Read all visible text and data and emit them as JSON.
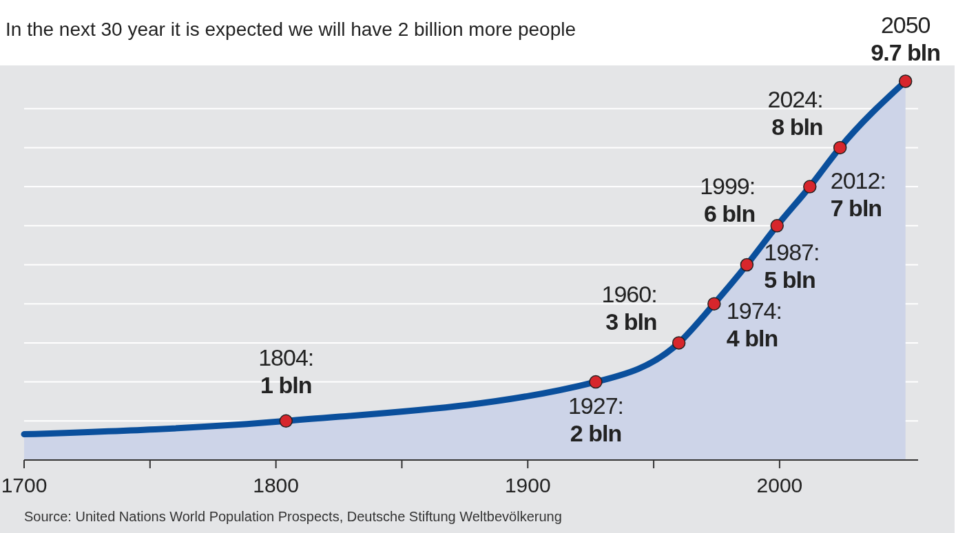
{
  "chart_data": {
    "type": "area",
    "title": "In the next 30 year it is expected we will have 2 billion more people",
    "xlim": [
      1700,
      2055
    ],
    "xticks": [
      1700,
      {
        "value": 1750,
        "label": null
      },
      1800,
      {
        "value": 1850,
        "label": null
      },
      1900,
      {
        "value": 1950,
        "label": null
      },
      2000
    ],
    "yticks": [
      {
        "value": 1,
        "label": null
      },
      {
        "value": 2,
        "label": null
      },
      {
        "value": 3,
        "label": null
      },
      {
        "value": 4,
        "label": null
      },
      {
        "value": 5,
        "label": null
      },
      {
        "value": 6,
        "label": null
      },
      {
        "value": 7,
        "label": null
      },
      {
        "value": 8,
        "label": null
      },
      {
        "value": 9,
        "label": null
      }
    ],
    "tick_labels": "x",
    "grid": "y",
    "marker": "circle",
    "series": [
      {
        "color": "#0a4f9c",
        "x": [
          1700,
          1804,
          1927,
          1960,
          1974,
          1987,
          1999,
          2012,
          2024,
          2050
        ],
        "values": [
          0.66,
          1,
          2,
          3,
          4,
          5,
          6,
          7,
          8,
          9.7
        ],
        "value_labels": [
          null,
          "1 bln",
          "2 bln",
          "3 bln",
          "4 bln",
          "5 bln",
          "6 bln",
          "7 bln",
          "8 bln",
          "9.7 bln"
        ]
      }
    ],
    "annotations": [
      {
        "text": "1804:",
        "x": 1804,
        "y": 1
      },
      {
        "text": "1927:",
        "x": 1927,
        "y": 2
      },
      {
        "text": "1960:",
        "x": 1960,
        "y": 3
      },
      {
        "text": "1974:",
        "x": 1974,
        "y": 4
      },
      {
        "text": "1987:",
        "x": 1987,
        "y": 5
      },
      {
        "text": "1999:",
        "x": 1999,
        "y": 6
      },
      {
        "text": "2012:",
        "x": 2012,
        "y": 7
      },
      {
        "text": "2024:",
        "x": 2024,
        "y": 8
      },
      {
        "text": "2050",
        "x": 2050,
        "y": 9.7
      },
      "Source: United Nations World Population Prospects, Deutsche Stiftung Weltbevölkerung"
    ]
  }
}
